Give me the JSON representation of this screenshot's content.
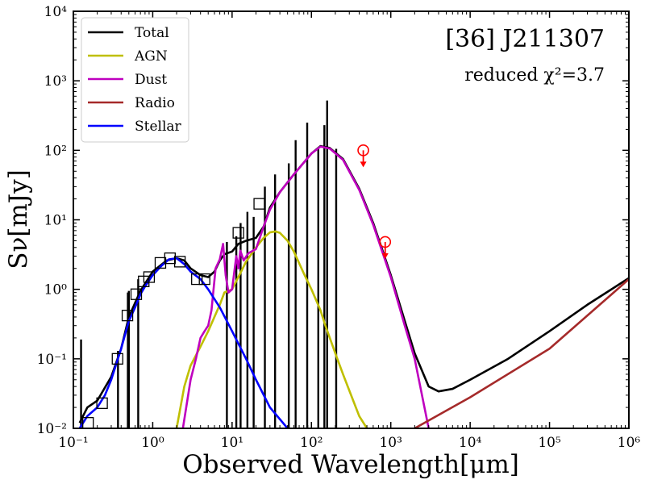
{
  "chart_data": {
    "type": "line",
    "title": "",
    "xlabel": "Observed Wavelength[μm]",
    "ylabel": "Sν[mJy]",
    "xscale": "log",
    "yscale": "log",
    "xlim": [
      0.1,
      1000000
    ],
    "ylim": [
      0.01,
      10000
    ],
    "x_ticks": [
      {
        "value": 0.1,
        "label": "10⁻¹"
      },
      {
        "value": 1,
        "label": "10⁰"
      },
      {
        "value": 10,
        "label": "10¹"
      },
      {
        "value": 100,
        "label": "10²"
      },
      {
        "value": 1000,
        "label": "10³"
      },
      {
        "value": 10000,
        "label": "10⁴"
      },
      {
        "value": 100000,
        "label": "10⁵"
      },
      {
        "value": 1000000,
        "label": "10⁶"
      }
    ],
    "y_ticks": [
      {
        "value": 0.01,
        "label": "10⁻²"
      },
      {
        "value": 0.1,
        "label": "10⁻¹"
      },
      {
        "value": 1,
        "label": "10⁰"
      },
      {
        "value": 10,
        "label": "10¹"
      },
      {
        "value": 100,
        "label": "10²"
      },
      {
        "value": 1000,
        "label": "10³"
      },
      {
        "value": 10000,
        "label": "10⁴"
      }
    ],
    "legend_position": "top-left",
    "annotations": {
      "object_name": "[36] J211307",
      "fit_quality": "reduced χ²=3.7"
    },
    "series": [
      {
        "name": "Total",
        "color": "#000000",
        "points": [
          [
            0.12,
            0.012
          ],
          [
            0.15,
            0.02
          ],
          [
            0.2,
            0.025
          ],
          [
            0.3,
            0.055
          ],
          [
            0.4,
            0.14
          ],
          [
            0.5,
            0.4
          ],
          [
            0.7,
            0.95
          ],
          [
            1.0,
            1.8
          ],
          [
            1.5,
            2.6
          ],
          [
            2.0,
            2.8
          ],
          [
            2.5,
            2.6
          ],
          [
            3.0,
            2.0
          ],
          [
            4.0,
            1.6
          ],
          [
            5.0,
            1.5
          ],
          [
            6.0,
            1.8
          ],
          [
            7.0,
            2.6
          ],
          [
            8.0,
            3.2
          ],
          [
            10.0,
            3.5
          ],
          [
            12.0,
            4.5
          ],
          [
            15.0,
            5.0
          ],
          [
            20.0,
            5.5
          ],
          [
            25.0,
            8.0
          ],
          [
            30.0,
            15.0
          ],
          [
            40.0,
            25.0
          ],
          [
            60.0,
            45.0
          ],
          [
            100.0,
            90.0
          ],
          [
            130.0,
            115.0
          ],
          [
            170.0,
            108.0
          ],
          [
            250.0,
            75.0
          ],
          [
            400.0,
            28.0
          ],
          [
            600.0,
            9.0
          ],
          [
            1000.0,
            1.6
          ],
          [
            1500.0,
            0.35
          ],
          [
            2000.0,
            0.12
          ],
          [
            3000.0,
            0.04
          ],
          [
            4000.0,
            0.034
          ],
          [
            6000.0,
            0.037
          ],
          [
            10000.0,
            0.05
          ],
          [
            30000.0,
            0.1
          ],
          [
            100000.0,
            0.25
          ],
          [
            300000.0,
            0.6
          ],
          [
            1000000.0,
            1.45
          ]
        ],
        "emission_lines": [
          [
            0.125,
            0.19
          ],
          [
            0.365,
            0.13
          ],
          [
            0.486,
            0.9
          ],
          [
            0.5,
            0.95
          ],
          [
            0.656,
            1.4
          ],
          [
            8.6,
            4.8
          ],
          [
            11.3,
            5.8
          ],
          [
            12.8,
            9.0
          ],
          [
            15.6,
            13.0
          ],
          [
            18.7,
            11.0
          ],
          [
            25.9,
            30.0
          ],
          [
            34.8,
            45.0
          ],
          [
            51.8,
            65.0
          ],
          [
            63.2,
            140.0
          ],
          [
            88.4,
            250.0
          ],
          [
            122.0,
            110.0
          ],
          [
            145.5,
            230.0
          ],
          [
            157.7,
            520.0
          ],
          [
            205.0,
            105.0
          ]
        ]
      },
      {
        "name": "AGN",
        "color": "#bfbf00",
        "points": [
          [
            2.0,
            0.01
          ],
          [
            2.5,
            0.04
          ],
          [
            3.0,
            0.08
          ],
          [
            4.0,
            0.15
          ],
          [
            5.0,
            0.25
          ],
          [
            7.0,
            0.6
          ],
          [
            8.0,
            0.9
          ],
          [
            10.0,
            1.0
          ],
          [
            12.0,
            1.5
          ],
          [
            15.0,
            2.5
          ],
          [
            20.0,
            4.0
          ],
          [
            25.0,
            5.5
          ],
          [
            30.0,
            6.6
          ],
          [
            35.0,
            6.8
          ],
          [
            40.0,
            6.5
          ],
          [
            50.0,
            5.0
          ],
          [
            60.0,
            3.5
          ],
          [
            80.0,
            1.7
          ],
          [
            100.0,
            1.0
          ],
          [
            130.0,
            0.5
          ],
          [
            150.0,
            0.3
          ],
          [
            200.0,
            0.12
          ],
          [
            250.0,
            0.06
          ],
          [
            300.0,
            0.035
          ],
          [
            400.0,
            0.015
          ],
          [
            500.0,
            0.01
          ]
        ]
      },
      {
        "name": "Dust",
        "color": "#bf00bf",
        "points": [
          [
            2.4,
            0.01
          ],
          [
            3.0,
            0.05
          ],
          [
            3.5,
            0.1
          ],
          [
            4.0,
            0.2
          ],
          [
            4.5,
            0.25
          ],
          [
            5.0,
            0.3
          ],
          [
            5.5,
            0.5
          ],
          [
            6.2,
            2.0
          ],
          [
            7.0,
            2.7
          ],
          [
            7.7,
            4.5
          ],
          [
            8.3,
            1.6
          ],
          [
            9.0,
            0.9
          ],
          [
            10.0,
            1.0
          ],
          [
            11.3,
            3.0
          ],
          [
            12.0,
            2.0
          ],
          [
            12.7,
            3.6
          ],
          [
            14.0,
            2.6
          ],
          [
            16.0,
            3.3
          ],
          [
            20.0,
            3.8
          ],
          [
            25.0,
            8.0
          ],
          [
            30.0,
            14.0
          ],
          [
            40.0,
            25.0
          ],
          [
            60.0,
            45.0
          ],
          [
            100.0,
            90.0
          ],
          [
            130.0,
            113.0
          ],
          [
            170.0,
            106.0
          ],
          [
            250.0,
            73.0
          ],
          [
            400.0,
            27.0
          ],
          [
            600.0,
            8.5
          ],
          [
            1000.0,
            1.5
          ],
          [
            1500.0,
            0.3
          ],
          [
            2000.0,
            0.1
          ],
          [
            3000.0,
            0.01
          ]
        ]
      },
      {
        "name": "Radio",
        "color": "#a52a2a",
        "points": [
          [
            2000.0,
            0.01
          ],
          [
            10000.0,
            0.028
          ],
          [
            100000.0,
            0.14
          ],
          [
            1000000.0,
            1.4
          ]
        ]
      },
      {
        "name": "Stellar",
        "color": "#0000ff",
        "points": [
          [
            0.12,
            0.01
          ],
          [
            0.15,
            0.015
          ],
          [
            0.2,
            0.02
          ],
          [
            0.25,
            0.03
          ],
          [
            0.3,
            0.05
          ],
          [
            0.4,
            0.14
          ],
          [
            0.5,
            0.35
          ],
          [
            0.6,
            0.55
          ],
          [
            0.7,
            0.85
          ],
          [
            0.8,
            1.1
          ],
          [
            1.0,
            1.6
          ],
          [
            1.3,
            2.2
          ],
          [
            1.6,
            2.7
          ],
          [
            2.0,
            2.8
          ],
          [
            2.5,
            2.3
          ],
          [
            3.0,
            1.8
          ],
          [
            4.0,
            1.4
          ],
          [
            5.0,
            1.0
          ],
          [
            7.0,
            0.55
          ],
          [
            10.0,
            0.25
          ],
          [
            15.0,
            0.1
          ],
          [
            20.0,
            0.05
          ],
          [
            30.0,
            0.02
          ],
          [
            50.0,
            0.01
          ]
        ]
      }
    ],
    "observations": [
      {
        "x": 0.153,
        "y": 0.012
      },
      {
        "x": 0.23,
        "y": 0.023
      },
      {
        "x": 0.36,
        "y": 0.1
      },
      {
        "x": 0.48,
        "y": 0.42
      },
      {
        "x": 0.62,
        "y": 0.85
      },
      {
        "x": 0.77,
        "y": 1.3
      },
      {
        "x": 0.9,
        "y": 1.5
      },
      {
        "x": 1.25,
        "y": 2.4
      },
      {
        "x": 1.65,
        "y": 2.8
      },
      {
        "x": 2.2,
        "y": 2.5
      },
      {
        "x": 3.6,
        "y": 1.4
      },
      {
        "x": 4.5,
        "y": 1.4
      },
      {
        "x": 12.0,
        "y": 6.5
      },
      {
        "x": 22.0,
        "y": 17.0
      }
    ],
    "upper_limits": [
      {
        "x": 450.0,
        "y": 100.0
      },
      {
        "x": 850.0,
        "y": 4.8
      }
    ],
    "upper_limit_color": "#ff0000"
  }
}
